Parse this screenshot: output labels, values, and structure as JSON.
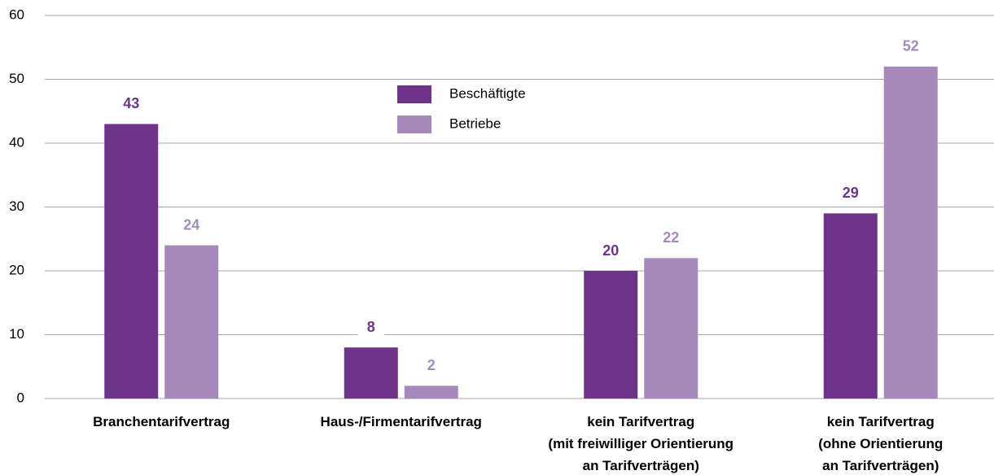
{
  "chart_data": {
    "type": "bar",
    "categories": [
      [
        "Branchentarifvertrag"
      ],
      [
        "Haus-/Firmentarifvertrag"
      ],
      [
        "kein Tarifvertrag",
        "(mit freiwilliger Orientierung",
        "an Tarifverträgen)"
      ],
      [
        "kein Tarifvertrag",
        "(ohne Orientierung",
        "an Tarifverträgen)"
      ]
    ],
    "series": [
      {
        "name": "Beschäftigte",
        "color": "#6d348a",
        "values": [
          43,
          8,
          20,
          29
        ]
      },
      {
        "name": "Betriebe",
        "color": "#a689bb",
        "values": [
          24,
          2,
          22,
          52
        ]
      }
    ],
    "ylim": [
      0,
      60
    ],
    "yticks": [
      0,
      10,
      20,
      30,
      40,
      50,
      60
    ],
    "grid": true,
    "legend": "top-center"
  }
}
